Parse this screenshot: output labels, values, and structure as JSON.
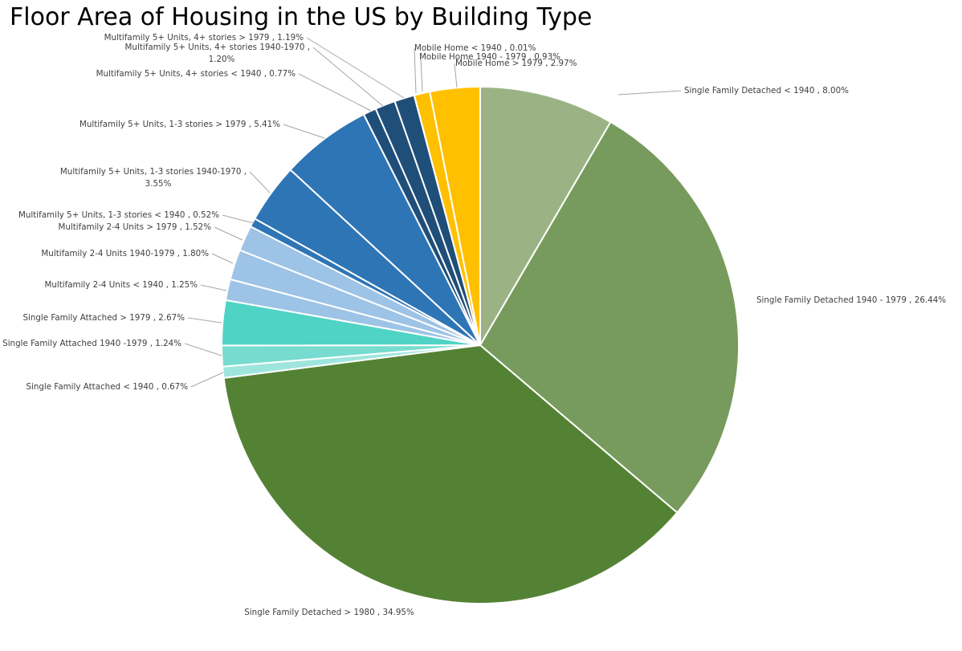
{
  "chart_data": {
    "type": "pie",
    "title": "Floor Area of Housing in the US by Building Type",
    "slices": [
      {
        "name": "Single Family Detached < 1940",
        "value": 8.0,
        "label": "Single Family Detached < 1940 , 8.00%",
        "color": "#9bb384"
      },
      {
        "name": "Single Family Detached 1940 - 1979",
        "value": 26.44,
        "label": "Single Family Detached 1940 - 1979 , 26.44%",
        "color": "#779b5c"
      },
      {
        "name": "Single Family Detached > 1980",
        "value": 34.95,
        "label": "Single Family Detached > 1980 , 34.95%",
        "color": "#548235"
      },
      {
        "name": "Single Family Attached < 1940",
        "value": 0.67,
        "label": "Single Family Attached < 1940 , 0.67%",
        "color": "#9ee6dd"
      },
      {
        "name": "Single Family Attached 1940 -1979",
        "value": 1.24,
        "label": "Single Family Attached 1940 -1979 , 1.24%",
        "color": "#77dccf"
      },
      {
        "name": "Single Family Attached > 1979",
        "value": 2.67,
        "label": "Single Family Attached > 1979 , 2.67%",
        "color": "#4fd3c5"
      },
      {
        "name": "Multifamily 2-4 Units < 1940",
        "value": 1.25,
        "label": "Multifamily 2-4 Units < 1940 , 1.25%",
        "color": "#9dc3e6"
      },
      {
        "name": "Multifamily 2-4 Units 1940-1979",
        "value": 1.8,
        "label": "Multifamily 2-4 Units 1940-1979 , 1.80%",
        "color": "#9dc3e6"
      },
      {
        "name": "Multifamily 2-4 Units > 1979",
        "value": 1.52,
        "label": "Multifamily 2-4 Units > 1979 , 1.52%",
        "color": "#9dc3e6"
      },
      {
        "name": "Multifamily 5+ Units, 1-3 stories < 1940",
        "value": 0.52,
        "label": "Multifamily 5+ Units, 1-3 stories < 1940 , 0.52%",
        "color": "#2e75b6"
      },
      {
        "name": "Multifamily 5+ Units, 1-3 stories 1940-1970",
        "value": 3.55,
        "label": "Multifamily 5+ Units, 1-3 stories 1940-1970 , 3.55%",
        "color": "#2e75b6"
      },
      {
        "name": "Multifamily 5+ Units, 1-3 stories > 1979",
        "value": 5.41,
        "label": "Multifamily 5+ Units, 1-3 stories > 1979 , 5.41%",
        "color": "#2e75b6"
      },
      {
        "name": "Multifamily 5+ Units, 4+ stories < 1940",
        "value": 0.77,
        "label": "Multifamily 5+ Units, 4+ stories < 1940 , 0.77%",
        "color": "#1f4e79"
      },
      {
        "name": "Multifamily 5+ Units, 4+ stories 1940-1970",
        "value": 1.2,
        "label": "Multifamily 5+ Units, 4+ stories 1940-1970 , 1.20%",
        "color": "#1f4e79"
      },
      {
        "name": "Multifamily 5+ Units, 4+ stories > 1979",
        "value": 1.19,
        "label": "Multifamily 5+ Units, 4+ stories > 1979 , 1.19%",
        "color": "#1f4e79"
      },
      {
        "name": "Mobile Home < 1940",
        "value": 0.01,
        "label": "Mobile Home < 1940 , 0.01%",
        "color": "#ffc000"
      },
      {
        "name": "Mobile Home 1940 - 1979",
        "value": 0.93,
        "label": "Mobile Home 1940 - 1979 , 0.93%",
        "color": "#ffc000"
      },
      {
        "name": "Mobile Home > 1979",
        "value": 2.97,
        "label": "Mobile Home > 1979 , 2.97%",
        "color": "#ffc000"
      }
    ],
    "legend": "none"
  }
}
